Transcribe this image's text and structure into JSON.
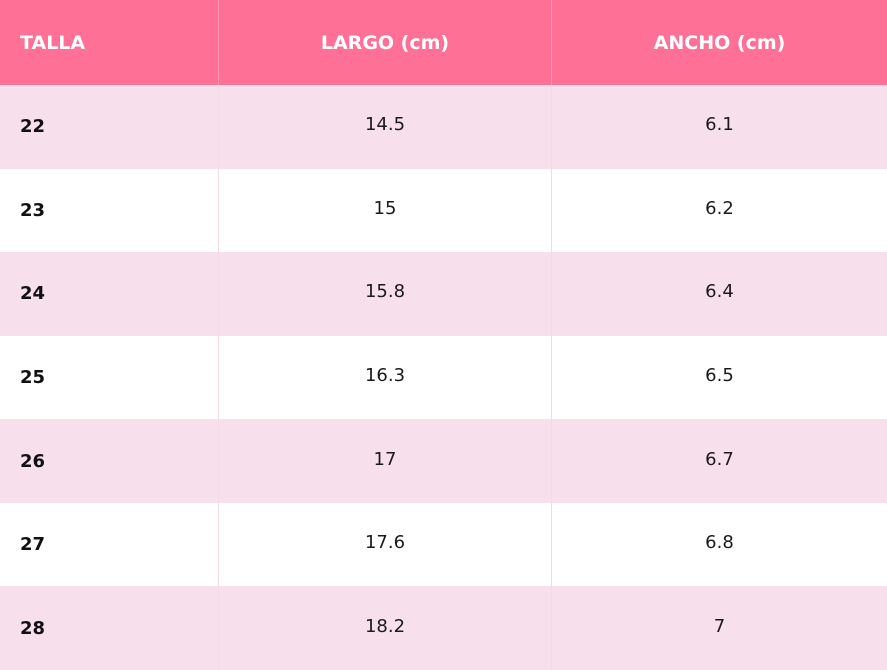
{
  "header": {
    "col1": "TALLA",
    "col2": "LARGO (cm)",
    "col3": "ANCHO (cm)"
  },
  "rows": [
    {
      "talla": "22",
      "largo": "14.5",
      "ancho": "6.1"
    },
    {
      "talla": "23",
      "largo": "15",
      "ancho": "6.2"
    },
    {
      "talla": "24",
      "largo": "15.8",
      "ancho": "6.4"
    },
    {
      "talla": "25",
      "largo": "16.3",
      "ancho": "6.5"
    },
    {
      "talla": "26",
      "largo": "17",
      "ancho": "6.7"
    },
    {
      "talla": "27",
      "largo": "17.6",
      "ancho": "6.8"
    },
    {
      "talla": "28",
      "largo": "18.2",
      "ancho": "7"
    }
  ],
  "colors": {
    "header_bg": "#ff7096",
    "row_alt_bg": "#f7e0ec",
    "row_bg": "#ffffff"
  }
}
